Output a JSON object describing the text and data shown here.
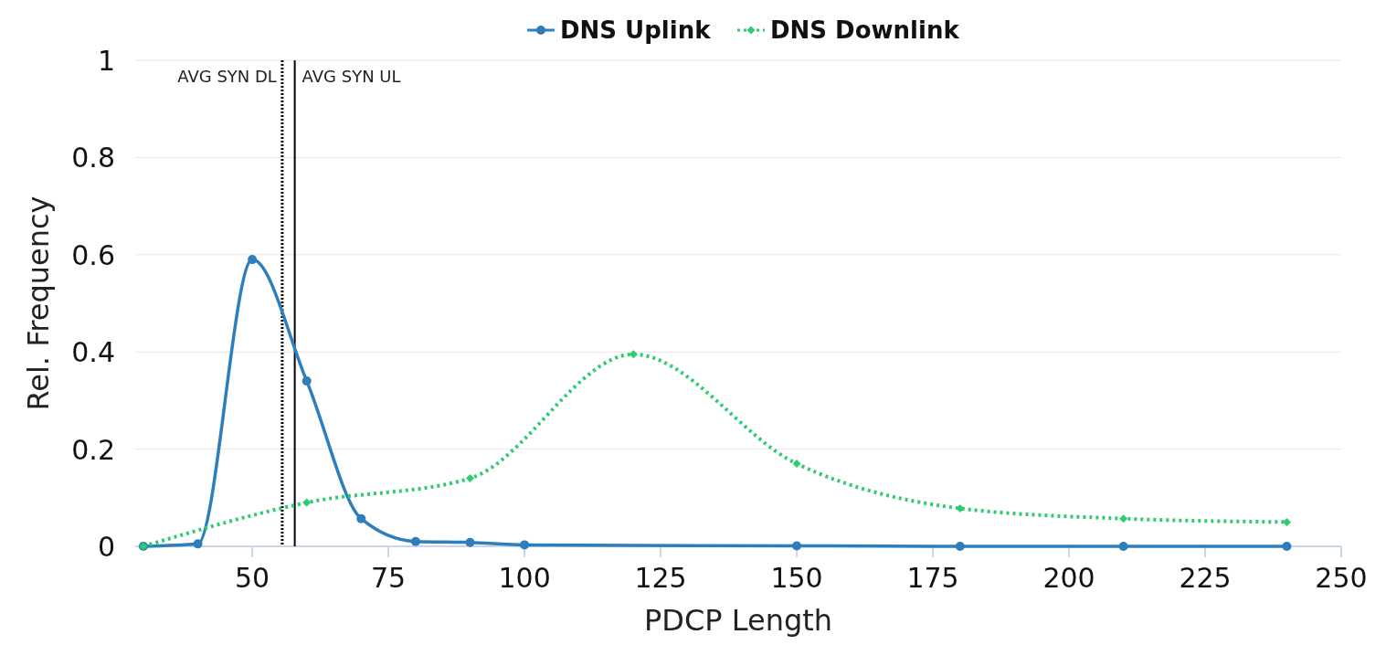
{
  "chart_data": {
    "type": "line",
    "xlabel": "PDCP Length",
    "ylabel": "Rel. Frequency",
    "xlim": [
      28.5,
      250
    ],
    "xticks": [
      50,
      75,
      100,
      125,
      150,
      175,
      200,
      225,
      250
    ],
    "ylim": [
      0,
      1
    ],
    "yticks": [
      0,
      0.2,
      0.4,
      0.6,
      0.8,
      1
    ],
    "grid": "y",
    "legend": "top",
    "series": [
      {
        "name": "DNS Uplink",
        "color": "#2f7ebc",
        "marker": "circle",
        "line_style": "solid",
        "x": [
          30,
          40,
          50,
          60,
          70,
          80,
          90,
          100,
          150,
          180,
          210,
          240
        ],
        "values": [
          0,
          0.005,
          0.59,
          0.34,
          0.057,
          0.01,
          0.008,
          0.003,
          0.001,
          0,
          0,
          0
        ]
      },
      {
        "name": "DNS Downlink",
        "color": "#2ecc71",
        "marker": "diamond",
        "line_style": "dotted",
        "x": [
          30,
          60,
          90,
          120,
          150,
          180,
          210,
          240
        ],
        "values": [
          0,
          0.09,
          0.14,
          0.395,
          0.17,
          0.078,
          0.057,
          0.05
        ]
      }
    ],
    "ref_lines": [
      {
        "axis": "x",
        "value": 55.5,
        "label": "AVG SYN DL",
        "line_style": "dotted",
        "color": "#000000"
      },
      {
        "axis": "x",
        "value": 57.8,
        "label": "AVG SYN UL",
        "line_style": "solid",
        "color": "#000000"
      }
    ]
  }
}
